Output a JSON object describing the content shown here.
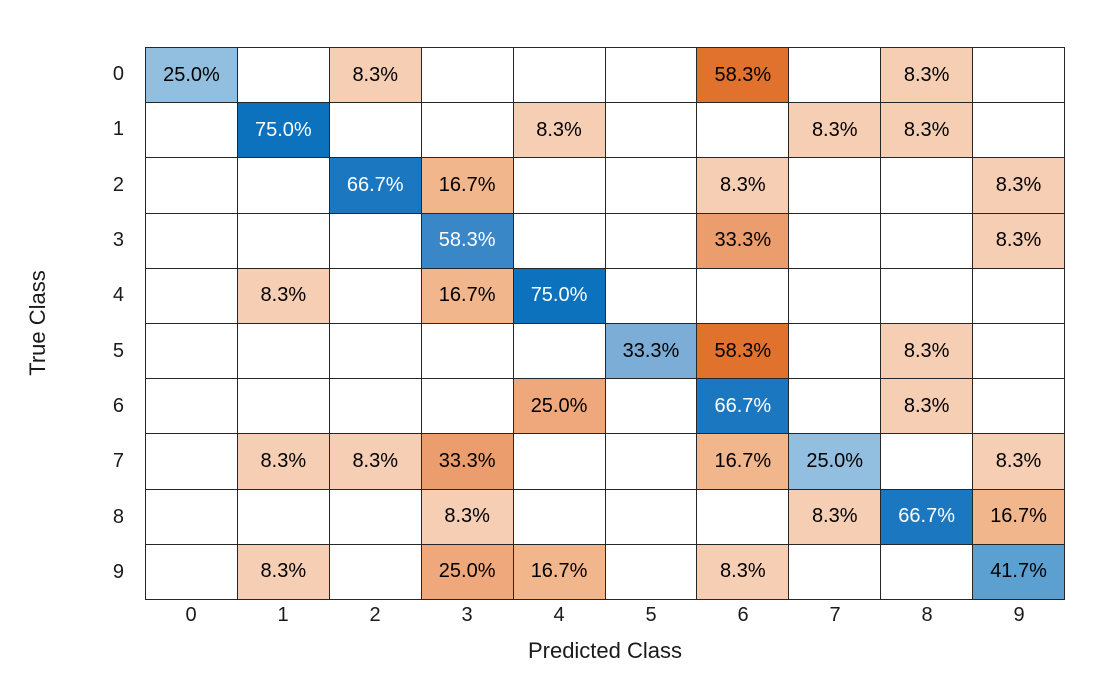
{
  "figure": {
    "background": "#ffffff",
    "grid_line_color": "#262626"
  },
  "chart_data": {
    "type": "heatmap",
    "subtype": "confusion-matrix",
    "title": "",
    "xlabel": "Predicted Class",
    "ylabel": "True Class",
    "x_tick_labels": [
      "0",
      "1",
      "2",
      "3",
      "4",
      "5",
      "6",
      "7",
      "8",
      "9"
    ],
    "y_tick_labels": [
      "0",
      "1",
      "2",
      "3",
      "4",
      "5",
      "6",
      "7",
      "8",
      "9"
    ],
    "values_unit": "%",
    "matrix": [
      [
        "25.0%",
        "",
        "8.3%",
        "",
        "",
        "",
        "58.3%",
        "",
        "8.3%",
        ""
      ],
      [
        "",
        "75.0%",
        "",
        "",
        "8.3%",
        "",
        "",
        "8.3%",
        "8.3%",
        ""
      ],
      [
        "",
        "",
        "66.7%",
        "16.7%",
        "",
        "",
        "8.3%",
        "",
        "",
        "8.3%"
      ],
      [
        "",
        "",
        "",
        "58.3%",
        "",
        "",
        "33.3%",
        "",
        "",
        "8.3%"
      ],
      [
        "",
        "8.3%",
        "",
        "16.7%",
        "75.0%",
        "",
        "",
        "",
        "",
        ""
      ],
      [
        "",
        "",
        "",
        "",
        "",
        "33.3%",
        "58.3%",
        "",
        "8.3%",
        ""
      ],
      [
        "",
        "",
        "",
        "",
        "25.0%",
        "",
        "66.7%",
        "",
        "8.3%",
        ""
      ],
      [
        "",
        "8.3%",
        "8.3%",
        "33.3%",
        "",
        "",
        "16.7%",
        "25.0%",
        "",
        "8.3%"
      ],
      [
        "",
        "",
        "",
        "8.3%",
        "",
        "",
        "",
        "8.3%",
        "66.7%",
        "16.7%"
      ],
      [
        "",
        "8.3%",
        "",
        "25.0%",
        "16.7%",
        "",
        "8.3%",
        "",
        "",
        "41.7%"
      ]
    ],
    "colors": {
      "empty_cell": "#ffffff",
      "diagonal_base": "#0c72bd",
      "off_diagonal_base": "#e1722d",
      "diagonal_by_value": {
        "25.0%": "#92bfe0",
        "33.3%": "#7badd6",
        "41.7%": "#5c9fd1",
        "58.3%": "#3a87c8",
        "66.7%": "#1b78c0",
        "75.0%": "#0c72bd"
      },
      "off_diagonal_by_value": {
        "8.3%": "#f6ceb4",
        "16.7%": "#f2b68d",
        "25.0%": "#efa87c",
        "33.3%": "#ec9d6e",
        "58.3%": "#e1722d"
      },
      "white_text_diagonal_values": [
        "58.3%",
        "66.7%",
        "75.0%"
      ]
    }
  }
}
